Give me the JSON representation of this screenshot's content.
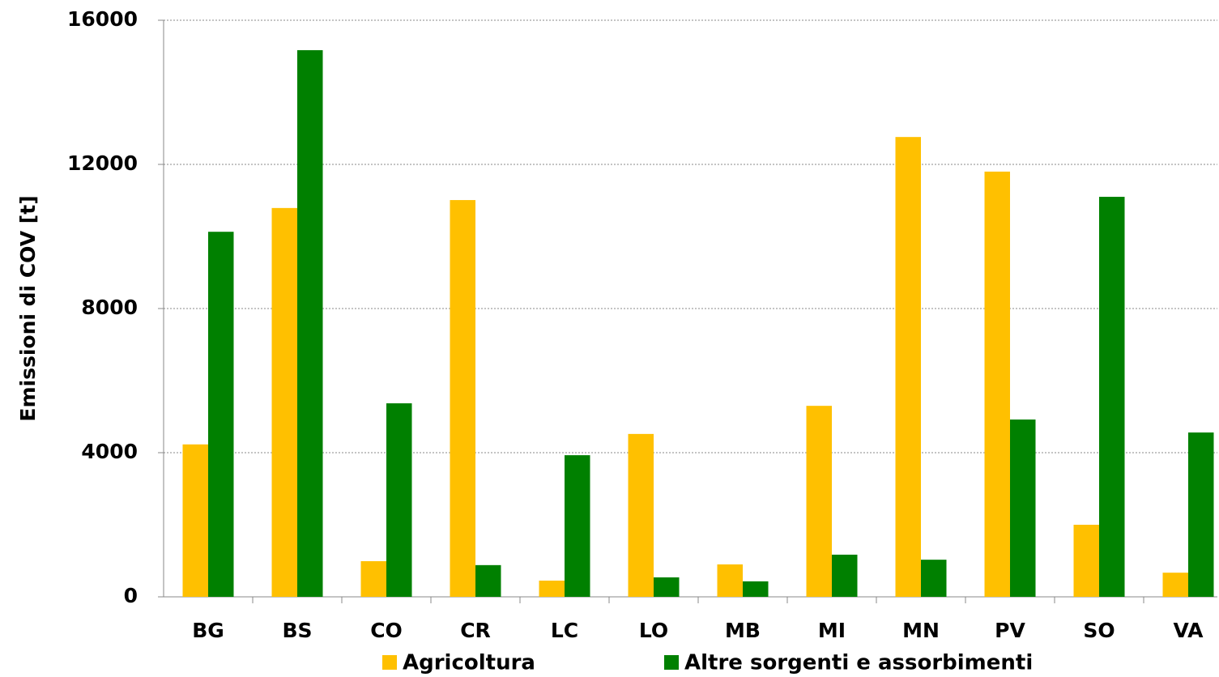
{
  "chart_data": {
    "type": "bar",
    "y_label": "Emissioni di COV [t]",
    "categories": [
      "BG",
      "BS",
      "CO",
      "CR",
      "LC",
      "LO",
      "MB",
      "MI",
      "MN",
      "PV",
      "SO",
      "VA"
    ],
    "series": [
      {
        "name": "Agricoltura",
        "color": "#ffc000",
        "values": [
          4230,
          10790,
          990,
          11010,
          450,
          4520,
          900,
          5300,
          12760,
          11800,
          2000,
          670
        ]
      },
      {
        "name": "Altre sorgenti e assorbimenti",
        "color": "#008000",
        "values": [
          10130,
          15170,
          5370,
          880,
          3930,
          540,
          430,
          1170,
          1030,
          4920,
          11100,
          4560
        ]
      }
    ],
    "ylim": [
      0,
      16000
    ],
    "yticks": [
      0,
      4000,
      8000,
      12000,
      16000
    ],
    "grid": true,
    "legend": "bottom"
  }
}
